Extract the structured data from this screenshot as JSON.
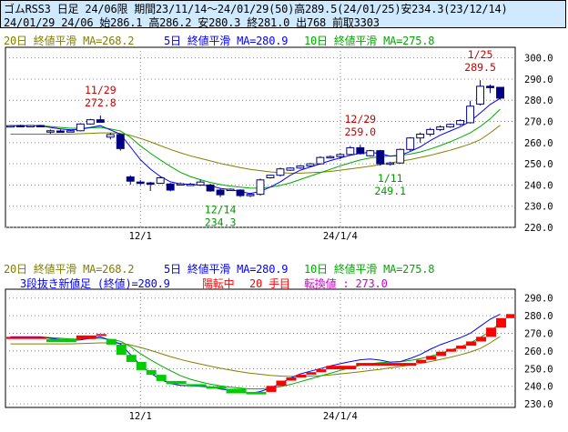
{
  "header": {
    "line1": "ゴムRSS3 日足 24/06限 期間23/11/14～24/01/29(50)高289.5(24/01/25)安234.3(23/12/14)",
    "line2": "24/01/29 24/06 始286.1 高286.2 安280.3 終281.0 出768 前取3303"
  },
  "top_legend": {
    "ma20": "20日 終値平滑 MA=268.2",
    "ma5": "5日 終値平滑 MA=280.9",
    "ma10": "10日 終値平滑 MA=275.8"
  },
  "bottom_legend": {
    "ma20": "20日 終値平滑 MA=268.2",
    "ma5": "5日 終値平滑 MA=280.9",
    "ma10": "10日 終値平滑 MA=275.8",
    "sanbon_label": "3段抜き新値足 (終値)=280.9",
    "state": "陽転中",
    "count": "20 手目",
    "tenkan": "転換値 : 273.0"
  },
  "colors": {
    "candle": "#000080",
    "ma5": "#0000ff",
    "ma10": "#00aa00",
    "ma20": "#808000",
    "up_brick": "#ff0000",
    "down_brick": "#00cc00",
    "annotation_high": "#cc0000",
    "annotation_low": "#009900",
    "header_bg": "#cfe9ff"
  },
  "chart_data": [
    {
      "type": "candlestick",
      "x_ticks": [
        "12/1",
        "24/1/4"
      ],
      "x_tick_index": [
        13,
        33
      ],
      "ylim": [
        220,
        305
      ],
      "y_ticks": [
        220.0,
        230.0,
        240.0,
        250.0,
        260.0,
        270.0,
        280.0,
        290.0,
        300.0
      ],
      "candles": [
        {
          "o": 268.0,
          "h": 268.3,
          "l": 267.7,
          "c": 268.0
        },
        {
          "o": 268.1,
          "h": 268.4,
          "l": 267.8,
          "c": 268.0
        },
        {
          "o": 268.0,
          "h": 268.3,
          "l": 267.7,
          "c": 268.1
        },
        {
          "o": 268.1,
          "h": 268.4,
          "l": 267.8,
          "c": 268.0
        },
        {
          "o": 265.0,
          "h": 266.2,
          "l": 264.2,
          "c": 265.6
        },
        {
          "o": 265.5,
          "h": 266.2,
          "l": 265.0,
          "c": 265.4
        },
        {
          "o": 265.4,
          "h": 266.0,
          "l": 265.0,
          "c": 265.6
        },
        {
          "o": 265.6,
          "h": 269.2,
          "l": 265.3,
          "c": 268.8
        },
        {
          "o": 268.8,
          "h": 271.2,
          "l": 268.5,
          "c": 270.8
        },
        {
          "o": 270.8,
          "h": 272.8,
          "l": 269.8,
          "c": 269.6
        },
        {
          "o": 262.6,
          "h": 264.6,
          "l": 261.5,
          "c": 263.8
        },
        {
          "o": 263.8,
          "h": 264.2,
          "l": 256.2,
          "c": 257.2
        },
        {
          "o": 243.8,
          "h": 244.6,
          "l": 240.2,
          "c": 241.8
        },
        {
          "o": 241.4,
          "h": 242.3,
          "l": 240.0,
          "c": 241.2
        },
        {
          "o": 241.0,
          "h": 241.5,
          "l": 237.2,
          "c": 240.4
        },
        {
          "o": 240.8,
          "h": 244.0,
          "l": 240.5,
          "c": 243.4
        },
        {
          "o": 240.5,
          "h": 241.0,
          "l": 237.0,
          "c": 237.6
        },
        {
          "o": 240.4,
          "h": 241.2,
          "l": 240.0,
          "c": 240.6
        },
        {
          "o": 240.2,
          "h": 241.0,
          "l": 239.5,
          "c": 240.4
        },
        {
          "o": 240.0,
          "h": 242.6,
          "l": 239.5,
          "c": 241.4
        },
        {
          "o": 240.0,
          "h": 240.6,
          "l": 236.8,
          "c": 237.2
        },
        {
          "o": 237.6,
          "h": 238.3,
          "l": 234.3,
          "c": 235.4
        },
        {
          "o": 237.8,
          "h": 238.4,
          "l": 237.2,
          "c": 238.0
        },
        {
          "o": 237.6,
          "h": 238.0,
          "l": 234.3,
          "c": 235.0
        },
        {
          "o": 235.0,
          "h": 236.0,
          "l": 234.3,
          "c": 235.6
        },
        {
          "o": 235.6,
          "h": 243.0,
          "l": 235.0,
          "c": 242.4
        },
        {
          "o": 243.4,
          "h": 244.8,
          "l": 243.0,
          "c": 244.6
        },
        {
          "o": 244.6,
          "h": 248.2,
          "l": 244.0,
          "c": 247.6
        },
        {
          "o": 247.0,
          "h": 248.4,
          "l": 246.6,
          "c": 248.0
        },
        {
          "o": 248.0,
          "h": 249.4,
          "l": 247.6,
          "c": 249.0
        },
        {
          "o": 249.0,
          "h": 250.4,
          "l": 248.6,
          "c": 250.0
        },
        {
          "o": 250.0,
          "h": 253.6,
          "l": 249.6,
          "c": 253.0
        },
        {
          "o": 253.0,
          "h": 254.0,
          "l": 252.6,
          "c": 253.4
        },
        {
          "o": 253.4,
          "h": 255.0,
          "l": 252.2,
          "c": 254.4
        },
        {
          "o": 254.4,
          "h": 258.4,
          "l": 254.0,
          "c": 257.6
        },
        {
          "o": 257.6,
          "h": 259.0,
          "l": 254.4,
          "c": 254.8
        },
        {
          "o": 253.8,
          "h": 256.6,
          "l": 253.4,
          "c": 256.2
        },
        {
          "o": 256.2,
          "h": 256.6,
          "l": 249.2,
          "c": 250.0
        },
        {
          "o": 250.2,
          "h": 251.0,
          "l": 249.1,
          "c": 250.4
        },
        {
          "o": 250.4,
          "h": 257.2,
          "l": 250.0,
          "c": 256.8
        },
        {
          "o": 256.8,
          "h": 262.6,
          "l": 256.0,
          "c": 262.2
        },
        {
          "o": 262.2,
          "h": 264.8,
          "l": 260.0,
          "c": 264.0
        },
        {
          "o": 264.0,
          "h": 267.0,
          "l": 263.0,
          "c": 266.2
        },
        {
          "o": 266.2,
          "h": 268.2,
          "l": 265.4,
          "c": 267.4
        },
        {
          "o": 267.4,
          "h": 269.0,
          "l": 267.0,
          "c": 268.6
        },
        {
          "o": 268.6,
          "h": 271.0,
          "l": 268.0,
          "c": 270.4
        },
        {
          "o": 269.4,
          "h": 279.8,
          "l": 269.0,
          "c": 277.2
        },
        {
          "o": 278.2,
          "h": 289.5,
          "l": 277.6,
          "c": 286.6
        },
        {
          "o": 286.6,
          "h": 287.4,
          "l": 283.4,
          "c": 286.2
        },
        {
          "o": 286.1,
          "h": 286.2,
          "l": 280.3,
          "c": 281.0
        }
      ],
      "ma5": [
        268.0,
        268.0,
        268.0,
        268.0,
        267.2,
        266.5,
        266.0,
        266.3,
        267.2,
        268.0,
        266.0,
        264.0,
        258.0,
        252.0,
        247.5,
        244.0,
        241.5,
        240.5,
        240.2,
        240.0,
        239.6,
        238.4,
        237.8,
        236.9,
        236.0,
        237.0,
        239.0,
        241.5,
        244.6,
        247.0,
        248.5,
        250.0,
        251.5,
        252.8,
        254.0,
        255.0,
        255.4,
        254.8,
        253.6,
        254.0,
        255.8,
        258.0,
        261.0,
        263.5,
        265.5,
        267.5,
        270.0,
        274.0,
        278.0,
        280.9
      ],
      "ma10": [
        268.0,
        268.0,
        268.0,
        268.0,
        267.6,
        267.2,
        266.8,
        266.8,
        267.0,
        267.2,
        266.5,
        265.5,
        262.5,
        258.5,
        255.0,
        251.8,
        248.8,
        246.0,
        244.0,
        242.5,
        241.2,
        240.2,
        239.5,
        239.0,
        238.5,
        238.5,
        239.0,
        239.8,
        241.0,
        242.6,
        244.2,
        245.8,
        247.4,
        249.0,
        250.5,
        251.8,
        252.8,
        253.4,
        253.7,
        254.0,
        254.6,
        255.6,
        257.0,
        258.6,
        260.4,
        262.4,
        264.6,
        267.6,
        271.2,
        275.8
      ],
      "ma20": [
        264.0,
        264.0,
        264.0,
        264.0,
        264.0,
        264.0,
        264.0,
        264.2,
        264.4,
        264.6,
        264.6,
        264.4,
        263.4,
        262.0,
        260.4,
        258.6,
        256.8,
        255.2,
        253.8,
        252.6,
        251.4,
        250.2,
        249.2,
        248.2,
        247.4,
        246.8,
        246.2,
        245.8,
        245.6,
        245.6,
        245.8,
        246.0,
        246.4,
        247.0,
        247.6,
        248.2,
        248.9,
        249.6,
        250.4,
        251.2,
        252.0,
        253.0,
        254.0,
        255.2,
        256.4,
        257.8,
        259.4,
        261.4,
        264.6,
        268.2
      ],
      "annotations": [
        {
          "date": "11/29",
          "value": "272.8",
          "index": 9,
          "kind": "high"
        },
        {
          "date": "12/29",
          "value": "259.0",
          "index": 35,
          "kind": "high"
        },
        {
          "date": "1/25",
          "value": "289.5",
          "index": 47,
          "kind": "high"
        },
        {
          "date": "12/14",
          "value": "234.3",
          "index": 21,
          "kind": "low"
        },
        {
          "date": "1/11",
          "value": "249.1",
          "index": 38,
          "kind": "low"
        }
      ]
    },
    {
      "type": "new-price-bricks",
      "x_ticks": [
        "12/1",
        "24/1/4"
      ],
      "x_tick_index": [
        13,
        33
      ],
      "ylim": [
        228,
        295
      ],
      "y_ticks": [
        230.0,
        240.0,
        250.0,
        260.0,
        270.0,
        280.0,
        290.0
      ],
      "bricks": [
        {
          "low": 266.8,
          "high": 268.0,
          "dir": "up",
          "x0": 0,
          "x1": 4
        },
        {
          "low": 265.0,
          "high": 266.8,
          "dir": "down",
          "x0": 4,
          "x1": 7
        },
        {
          "low": 266.8,
          "high": 268.8,
          "dir": "up",
          "x0": 7,
          "x1": 9
        },
        {
          "low": 268.8,
          "high": 269.6,
          "dir": "up",
          "x0": 9,
          "x1": 10
        },
        {
          "low": 263.6,
          "high": 266.8,
          "dir": "down",
          "x0": 10,
          "x1": 11
        },
        {
          "low": 257.8,
          "high": 263.6,
          "dir": "down",
          "x0": 11,
          "x1": 12
        },
        {
          "low": 253.8,
          "high": 257.8,
          "dir": "down",
          "x0": 12,
          "x1": 13
        },
        {
          "low": 249.2,
          "high": 253.8,
          "dir": "down",
          "x0": 13,
          "x1": 14
        },
        {
          "low": 246.5,
          "high": 249.2,
          "dir": "down",
          "x0": 14,
          "x1": 15
        },
        {
          "low": 243.0,
          "high": 246.5,
          "dir": "down",
          "x0": 15,
          "x1": 16
        },
        {
          "low": 241.2,
          "high": 243.0,
          "dir": "down",
          "x0": 16,
          "x1": 18
        },
        {
          "low": 240.0,
          "high": 241.2,
          "dir": "down",
          "x0": 18,
          "x1": 20
        },
        {
          "low": 238.6,
          "high": 240.0,
          "dir": "down",
          "x0": 20,
          "x1": 22
        },
        {
          "low": 236.0,
          "high": 238.6,
          "dir": "down",
          "x0": 22,
          "x1": 24
        },
        {
          "low": 235.4,
          "high": 236.8,
          "dir": "down",
          "x0": 24,
          "x1": 26
        },
        {
          "low": 236.8,
          "high": 240.2,
          "dir": "up",
          "x0": 26,
          "x1": 27
        },
        {
          "low": 240.2,
          "high": 243.2,
          "dir": "up",
          "x0": 27,
          "x1": 28
        },
        {
          "low": 243.2,
          "high": 245.0,
          "dir": "up",
          "x0": 28,
          "x1": 29
        },
        {
          "low": 245.0,
          "high": 246.6,
          "dir": "up",
          "x0": 29,
          "x1": 30
        },
        {
          "low": 246.6,
          "high": 248.0,
          "dir": "up",
          "x0": 30,
          "x1": 31
        },
        {
          "low": 248.0,
          "high": 249.6,
          "dir": "up",
          "x0": 31,
          "x1": 32
        },
        {
          "low": 249.6,
          "high": 251.6,
          "dir": "up",
          "x0": 32,
          "x1": 35
        },
        {
          "low": 251.6,
          "high": 253.2,
          "dir": "up",
          "x0": 35,
          "x1": 41
        },
        {
          "low": 253.2,
          "high": 255.0,
          "dir": "up",
          "x0": 41,
          "x1": 42
        },
        {
          "low": 255.0,
          "high": 257.2,
          "dir": "up",
          "x0": 42,
          "x1": 43
        },
        {
          "low": 257.2,
          "high": 259.6,
          "dir": "up",
          "x0": 43,
          "x1": 44
        },
        {
          "low": 259.6,
          "high": 261.2,
          "dir": "up",
          "x0": 44,
          "x1": 45
        },
        {
          "low": 261.2,
          "high": 263.0,
          "dir": "up",
          "x0": 45,
          "x1": 46
        },
        {
          "low": 263.0,
          "high": 265.4,
          "dir": "up",
          "x0": 46,
          "x1": 47
        },
        {
          "low": 265.4,
          "high": 268.0,
          "dir": "up",
          "x0": 47,
          "x1": 48
        },
        {
          "low": 268.0,
          "high": 273.2,
          "dir": "up",
          "x0": 48,
          "x1": 49
        },
        {
          "low": 273.2,
          "high": 278.6,
          "dir": "up",
          "x0": 49,
          "x1": 50
        },
        {
          "low": 278.6,
          "high": 280.9,
          "dir": "up",
          "x0": 50,
          "x1": 52
        }
      ]
    }
  ]
}
